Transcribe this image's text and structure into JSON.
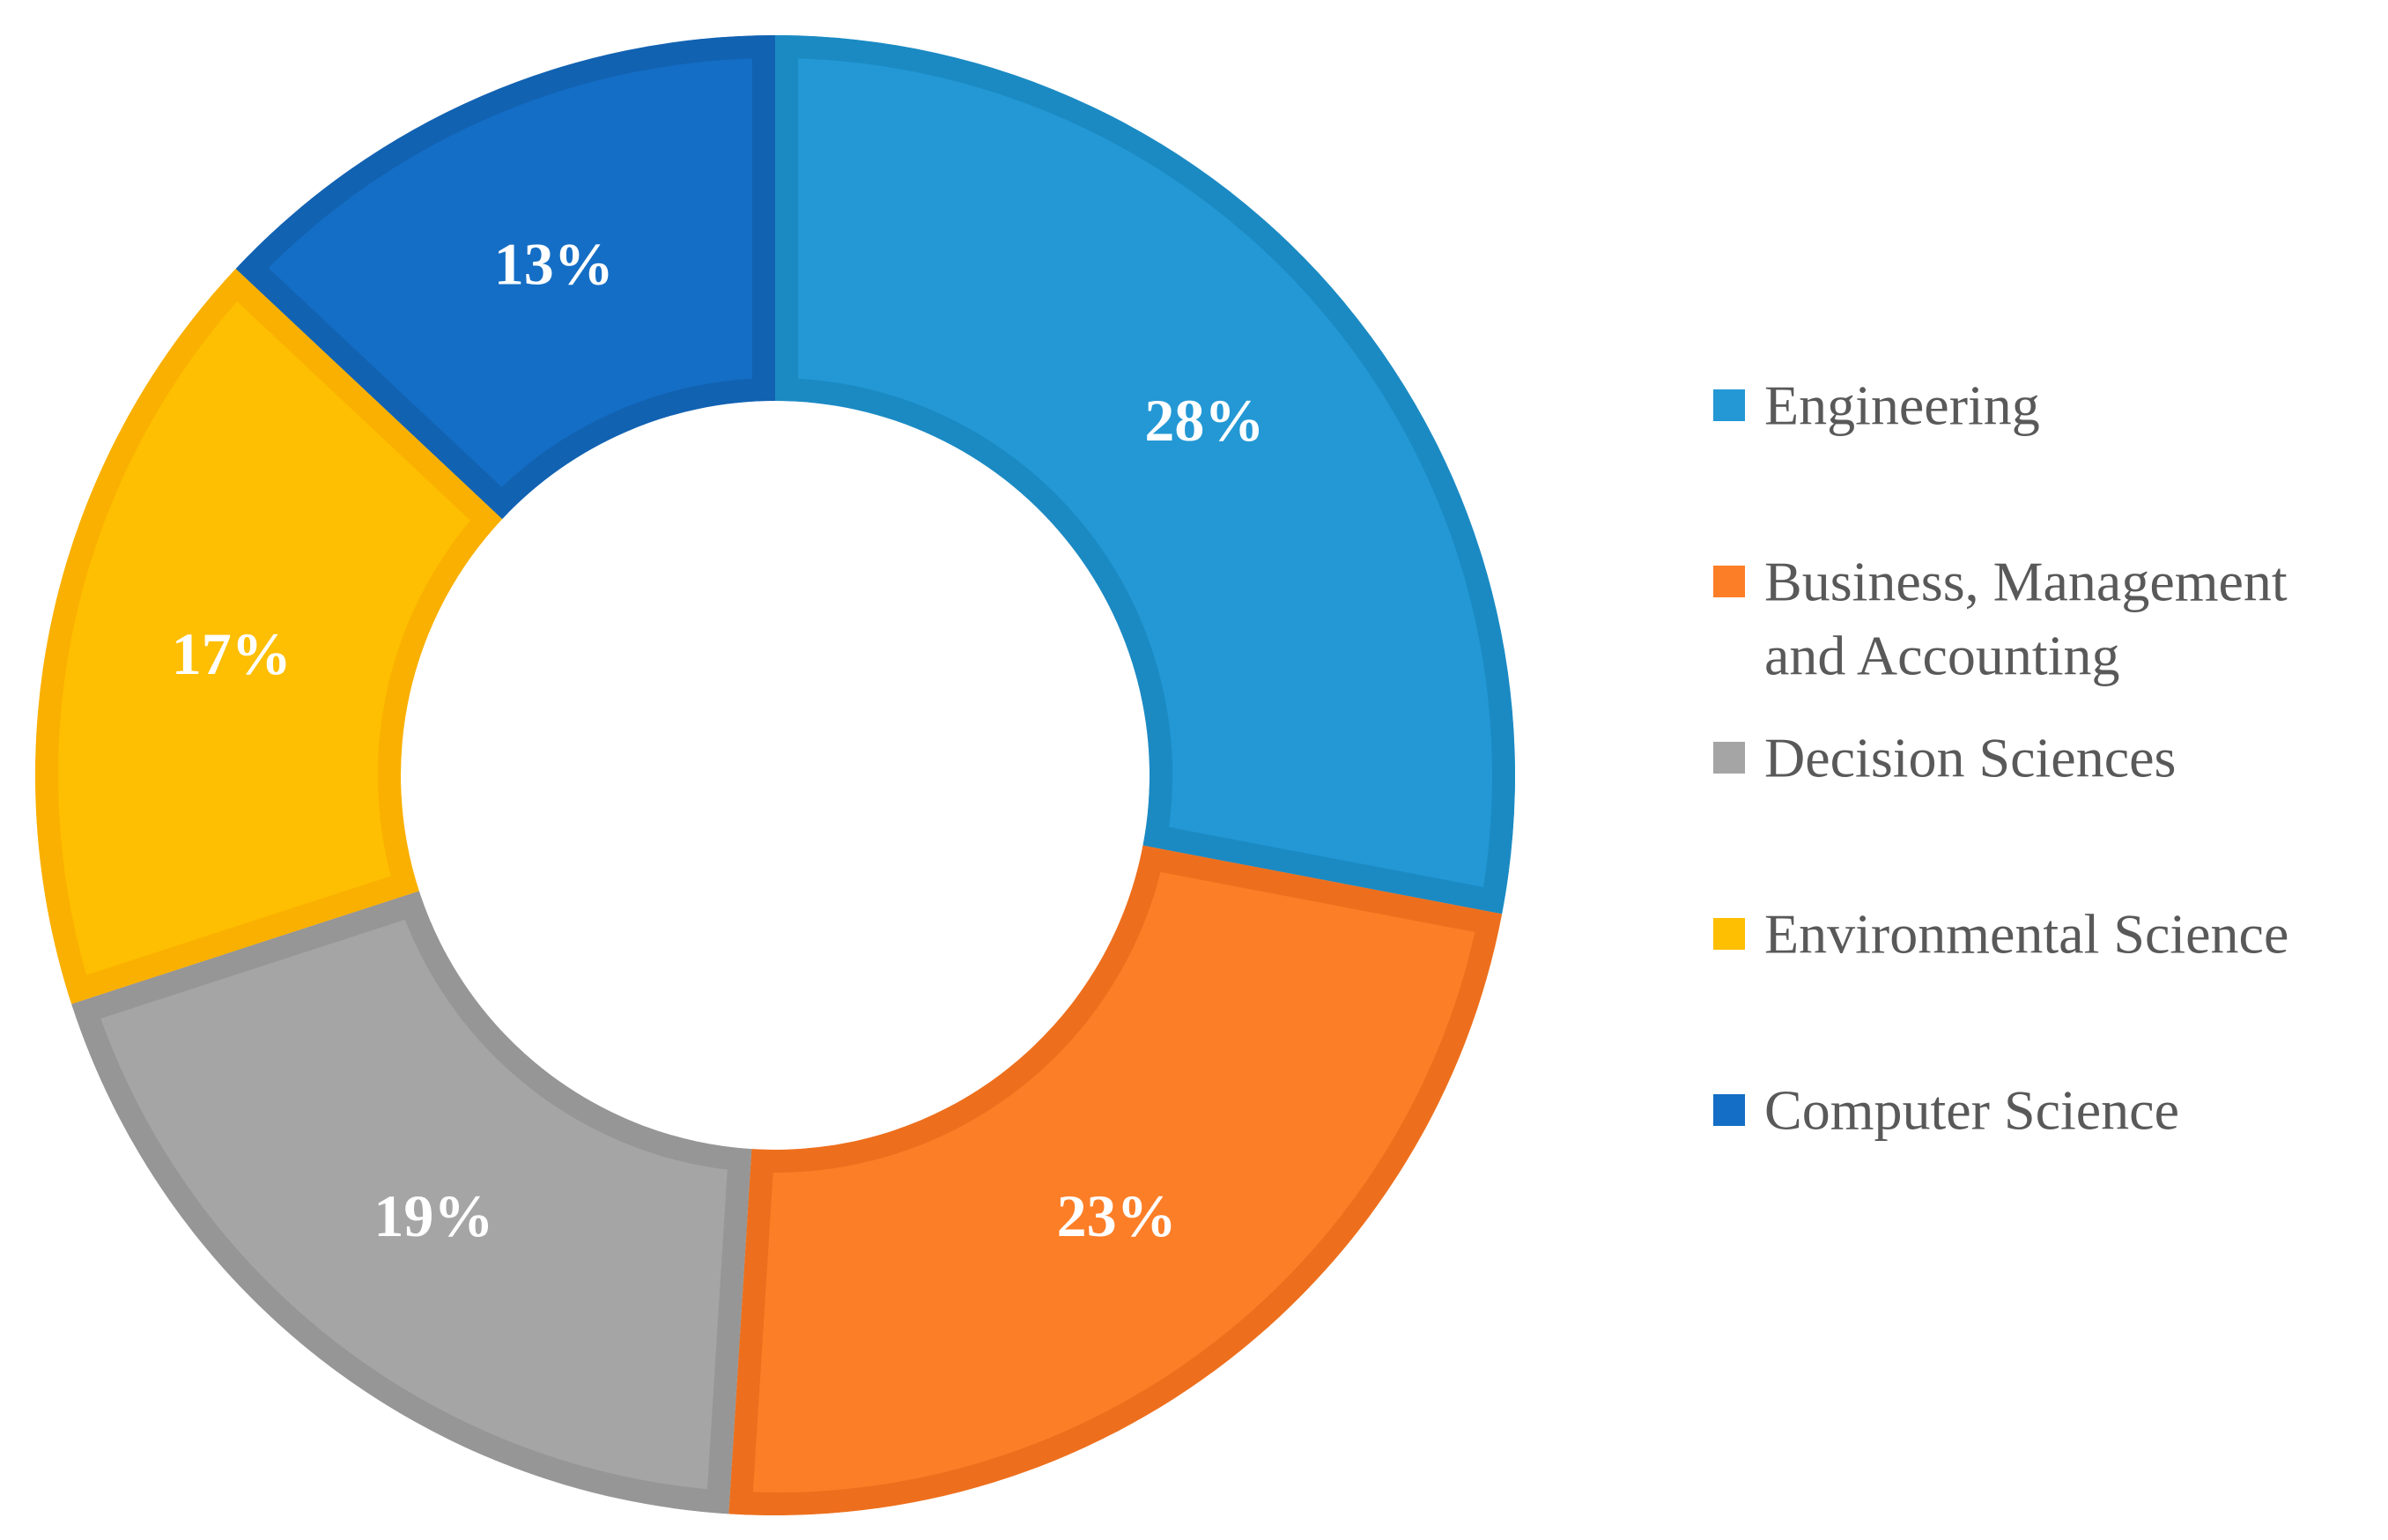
{
  "chart_data": {
    "type": "pie",
    "variant": "donut",
    "title": "",
    "legend_position": "right",
    "slices": [
      {
        "name": "Engineering",
        "legend_lines": [
          "Engineering"
        ],
        "value": 28,
        "label": "28%",
        "color": "#2398D5",
        "edge_color": "#1B8AC3"
      },
      {
        "name": "Business, Management and Accounting",
        "legend_lines": [
          "Business, Management",
          "and Accounting"
        ],
        "value": 23,
        "label": "23%",
        "color": "#FC7E27",
        "edge_color": "#ED6F1D"
      },
      {
        "name": "Decision Sciences",
        "legend_lines": [
          "Decision Sciences"
        ],
        "value": 19,
        "label": "19%",
        "color": "#A5A5A5",
        "edge_color": "#969696"
      },
      {
        "name": "Environmental Science",
        "legend_lines": [
          "Environmental Science"
        ],
        "value": 17,
        "label": "17%",
        "color": "#FEBE01",
        "edge_color": "#FAB000"
      },
      {
        "name": "Computer Science",
        "legend_lines": [
          "Computer Science"
        ],
        "value": 13,
        "label": "13%",
        "color": "#146EC5",
        "edge_color": "#1262B2"
      }
    ]
  }
}
